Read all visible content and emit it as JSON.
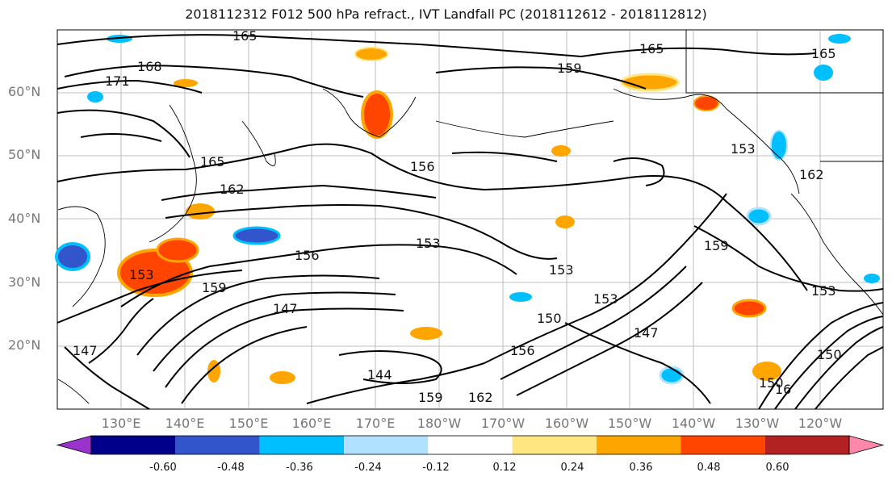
{
  "title": "2018112312 F012 500 hPa refract., IVT Landfall PC (2018112612 - 2018112812)",
  "lat_labels": [
    "60°N",
    "50°N",
    "40°N",
    "30°N",
    "20°N"
  ],
  "lon_labels": [
    "130°E",
    "140°E",
    "150°E",
    "160°E",
    "170°E",
    "180°W",
    "170°W",
    "160°W",
    "150°W",
    "140°W",
    "130°W",
    "120°W"
  ],
  "contour_labels": [
    "165",
    "168",
    "171",
    "165",
    "162",
    "156",
    "153",
    "156",
    "153",
    "159",
    "147",
    "144",
    "150",
    "156",
    "159",
    "162",
    "159",
    "165",
    "159",
    "165",
    "153",
    "162",
    "153",
    "153",
    "147",
    "150",
    "153",
    "150",
    "147",
    "16"
  ],
  "colorbar": {
    "tick_labels": [
      "-0.60",
      "-0.48",
      "-0.36",
      "-0.24",
      "-0.12",
      "0.12",
      "0.24",
      "0.36",
      "0.48",
      "0.60"
    ],
    "colors": [
      "#9933cc",
      "#00008b",
      "#3355cc",
      "#00bfff",
      "#b0e2ff",
      "#ffffff",
      "#ffe680",
      "#ffa500",
      "#ff4500",
      "#b22222",
      "#ff88aa"
    ]
  }
}
